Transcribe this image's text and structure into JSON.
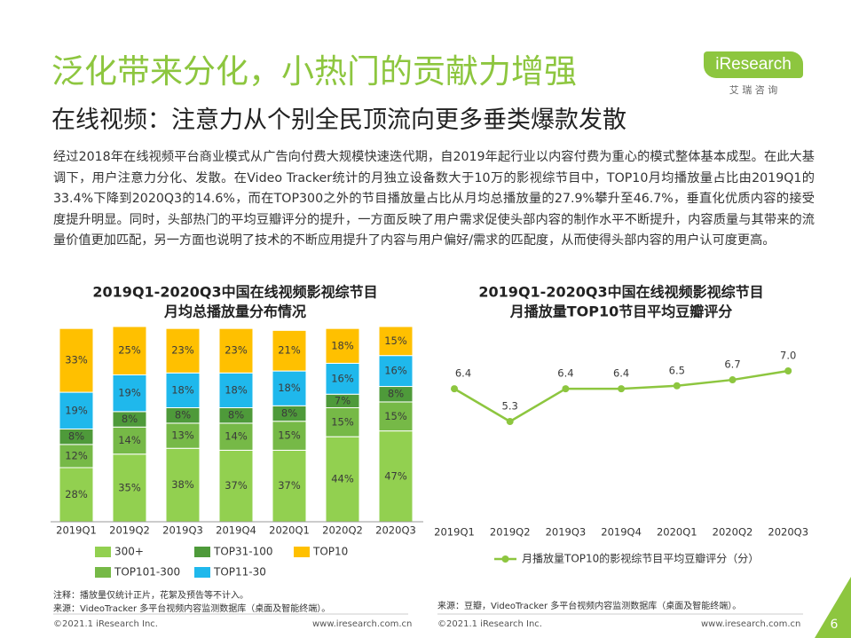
{
  "header": {
    "title": "泛化带来分化，小热门的贡献力增强",
    "subtitle": "在线视频：注意力从个别全民顶流向更多垂类爆款发散"
  },
  "logo": {
    "name": "iResearch",
    "cn": "艾 瑞 咨 询"
  },
  "body": "经过2018年在线视频平台商业模式从广告向付费大规模快速迭代期，自2019年起行业以内容付费为重心的模式整体基本成型。在此大基调下，用户注意力分化、发散。在Video Tracker统计的月独立设备数大于10万的影视综节目中，TOP10月均播放量占比由2019Q1的33.4%下降到2020Q3的14.6%，而在TOP300之外的节目播放量占比从月均总播放量的27.9%攀升至46.7%，垂直化优质内容的接受度提升明显。同时，头部热门的平均豆瓣评分的提升，一方面反映了用户需求促使头部内容的制作水平不断提升，内容质量与其带来的流量价值更加匹配，另一方面也说明了技术的不断应用提升了内容与用户偏好/需求的匹配度，从而使得头部内容的用户认可度更高。",
  "chart_data": [
    {
      "type": "bar",
      "stacked": true,
      "title": [
        "2019Q1-2020Q3中国在线视频影视综节目",
        "月均总播放量分布情况"
      ],
      "categories": [
        "2019Q1",
        "2019Q2",
        "2019Q3",
        "2019Q4",
        "2020Q1",
        "2020Q2",
        "2020Q3"
      ],
      "series": [
        {
          "name": "300+",
          "color": "#92d050",
          "values": [
            28,
            35,
            38,
            37,
            37,
            44,
            47
          ],
          "value_labels": [
            "28%",
            "35%",
            "38%",
            "37%",
            "37%",
            "44%",
            "47%"
          ]
        },
        {
          "name": "TOP101-300",
          "color": "#76b947",
          "values": [
            12,
            14,
            13,
            14,
            15,
            15,
            15
          ],
          "value_labels": [
            "12%",
            "14%",
            "13%",
            "14%",
            "15%",
            "15%",
            "15%"
          ]
        },
        {
          "name": "TOP31-100",
          "color": "#4e9a3a",
          "values": [
            8,
            8,
            8,
            8,
            8,
            7,
            8
          ],
          "value_labels": [
            "8%",
            "8%",
            "8%",
            "8%",
            "8%",
            "7%",
            "8%"
          ]
        },
        {
          "name": "TOP11-30",
          "color": "#1fb8ec",
          "values": [
            19,
            19,
            18,
            18,
            18,
            16,
            16
          ],
          "value_labels": [
            "19%",
            "19%",
            "18%",
            "18%",
            "18%",
            "16%",
            "16%"
          ]
        },
        {
          "name": "TOP10",
          "color": "#ffc000",
          "values": [
            33,
            25,
            23,
            23,
            21,
            18,
            15
          ],
          "value_labels": [
            "33%",
            "25%",
            "23%",
            "23%",
            "21%",
            "18%",
            "15%"
          ]
        }
      ]
    },
    {
      "type": "line",
      "title": [
        "2019Q1-2020Q3中国在线视频影视综节目",
        "月播放量TOP10节目平均豆瓣评分"
      ],
      "categories": [
        "2019Q1",
        "2019Q2",
        "2019Q3",
        "2019Q4",
        "2020Q1",
        "2020Q2",
        "2020Q3"
      ],
      "series": [
        {
          "name": "月播放量TOP10的影视综节目平均豆瓣评分（分）",
          "color": "#8dc63f",
          "values": [
            6.4,
            5.3,
            6.4,
            6.4,
            6.5,
            6.7,
            7.0
          ],
          "value_labels": [
            "6.4",
            "5.3",
            "6.4",
            "6.4",
            "6.5",
            "6.7",
            "7.0"
          ]
        }
      ]
    }
  ],
  "notes": {
    "left": [
      "注释：播放量仅统计正片，花絮及预告等不计入。",
      "来源：VideoTracker 多平台视频内容监测数据库（桌面及智能终端）。"
    ],
    "right": "来源：豆瓣，VideoTracker 多平台视频内容监测数据库（桌面及智能终端）。"
  },
  "footer": {
    "left_copyright": "©2021.1 iResearch Inc.",
    "left_url": "www.iresearch.com.cn",
    "right_copyright": "©2021.1 iResearch Inc.",
    "right_url": "www.iresearch.com.cn"
  },
  "page_number": 6
}
